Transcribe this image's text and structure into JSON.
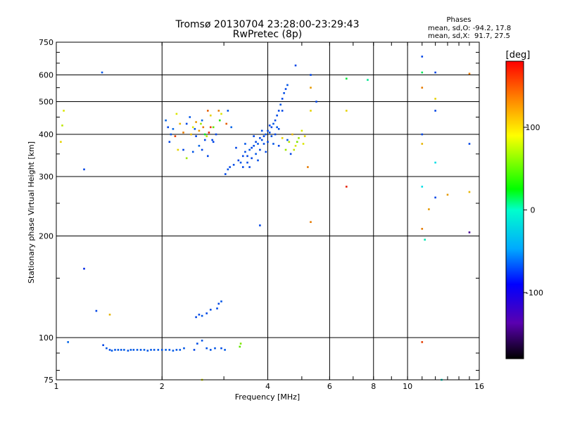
{
  "chart_data": {
    "type": "scatter",
    "title": "Tromsø 20130704 23:28:00-23:29:43",
    "subtitle": "RwPretec (8p)",
    "xlabel": "Frequency [MHz]",
    "ylabel": "Stationary phase Virtual Height [km]",
    "xscale": "log",
    "yscale": "log",
    "xlim": [
      1,
      16
    ],
    "ylim": [
      75,
      750
    ],
    "xticks": [
      1,
      2,
      4,
      6,
      8,
      10,
      16
    ],
    "yticks": [
      75,
      100,
      200,
      300,
      400,
      500,
      600,
      750
    ],
    "grid": true,
    "phases_box": {
      "title": "Phases",
      "line_o": "mean, sd,O: -94.2, 17.8",
      "line_x": "mean, sd,X:  91.7, 27.5"
    },
    "colorbar": {
      "label": "[deg]",
      "range": [
        -180,
        180
      ],
      "ticks": [
        100,
        0,
        -100
      ],
      "colormap": "rainbow"
    },
    "series": [
      {
        "name": "points",
        "points": [
          [
            1.05,
            470,
            100
          ],
          [
            1.04,
            425,
            90
          ],
          [
            1.03,
            380,
            110
          ],
          [
            1.08,
            97,
            -90
          ],
          [
            1.2,
            315,
            -100
          ],
          [
            1.2,
            160,
            -110
          ],
          [
            1.3,
            120,
            -100
          ],
          [
            1.35,
            610,
            -95
          ],
          [
            1.42,
            117,
            120
          ],
          [
            1.36,
            95,
            -100
          ],
          [
            1.39,
            93,
            -95
          ],
          [
            1.42,
            92,
            -98
          ],
          [
            1.44,
            91.5,
            -94
          ],
          [
            1.47,
            92,
            -96
          ],
          [
            1.5,
            92,
            -94
          ],
          [
            1.53,
            92,
            -95
          ],
          [
            1.56,
            92,
            -93
          ],
          [
            1.6,
            91.5,
            -96
          ],
          [
            1.63,
            92,
            -94
          ],
          [
            1.66,
            92,
            -95
          ],
          [
            1.7,
            92,
            -94
          ],
          [
            1.74,
            92,
            -96
          ],
          [
            1.78,
            92,
            -93
          ],
          [
            1.82,
            91.5,
            -95
          ],
          [
            1.86,
            92,
            -94
          ],
          [
            1.9,
            92,
            -96
          ],
          [
            1.95,
            92,
            -94
          ],
          [
            2.0,
            92,
            -95
          ],
          [
            2.05,
            92,
            -93
          ],
          [
            2.1,
            92,
            -95
          ],
          [
            2.15,
            91.5,
            -94
          ],
          [
            2.2,
            92,
            -96
          ],
          [
            2.25,
            92,
            -94
          ],
          [
            2.31,
            93,
            -95
          ],
          [
            2.47,
            92,
            -100
          ],
          [
            2.52,
            96,
            -98
          ],
          [
            2.6,
            98,
            -95
          ],
          [
            2.68,
            93,
            -97
          ],
          [
            2.75,
            92,
            -96
          ],
          [
            2.83,
            93,
            -95
          ],
          [
            2.95,
            93,
            -98
          ],
          [
            3.02,
            92,
            -94
          ],
          [
            2.5,
            115,
            -100
          ],
          [
            2.55,
            117,
            -98
          ],
          [
            2.6,
            116,
            -96
          ],
          [
            2.68,
            118,
            -100
          ],
          [
            2.75,
            121,
            -97
          ],
          [
            2.9,
            126,
            -100
          ],
          [
            2.95,
            128,
            -95
          ],
          [
            2.87,
            122,
            -99
          ],
          [
            3.33,
            94,
            60
          ],
          [
            3.35,
            96,
            70
          ],
          [
            2.6,
            75,
            100
          ],
          [
            2.05,
            440,
            -90
          ],
          [
            2.08,
            420,
            -100
          ],
          [
            2.12,
            400,
            -95
          ],
          [
            2.1,
            380,
            -100
          ],
          [
            2.15,
            415,
            -90
          ],
          [
            2.2,
            460,
            100
          ],
          [
            2.25,
            430,
            120
          ],
          [
            2.3,
            405,
            140
          ],
          [
            2.35,
            430,
            -100
          ],
          [
            2.4,
            450,
            -95
          ],
          [
            2.45,
            420,
            100
          ],
          [
            2.5,
            395,
            -100
          ],
          [
            2.55,
            410,
            130
          ],
          [
            2.6,
            440,
            -90
          ],
          [
            2.65,
            400,
            20
          ],
          [
            2.7,
            470,
            150
          ],
          [
            2.75,
            455,
            110
          ],
          [
            2.8,
            420,
            60
          ],
          [
            2.85,
            400,
            -100
          ],
          [
            2.9,
            470,
            140
          ],
          [
            2.95,
            460,
            100
          ],
          [
            3.05,
            430,
            150
          ],
          [
            3.15,
            420,
            -90
          ],
          [
            2.3,
            360,
            -100
          ],
          [
            2.35,
            340,
            80
          ],
          [
            2.45,
            355,
            -95
          ],
          [
            2.55,
            370,
            -90
          ],
          [
            2.6,
            360,
            -100
          ],
          [
            2.7,
            345,
            -100
          ],
          [
            2.75,
            420,
            160
          ],
          [
            2.5,
            435,
            130
          ],
          [
            2.65,
            385,
            -100
          ],
          [
            2.8,
            380,
            -100
          ],
          [
            2.22,
            360,
            110
          ],
          [
            2.62,
            420,
            140
          ],
          [
            2.72,
            405,
            170
          ],
          [
            3.08,
            470,
            -95
          ],
          [
            2.92,
            440,
            40
          ],
          [
            2.58,
            430,
            80
          ],
          [
            2.42,
            400,
            120
          ],
          [
            2.68,
            395,
            90
          ],
          [
            2.78,
            385,
            -100
          ],
          [
            2.18,
            395,
            160
          ],
          [
            2.48,
            415,
            -95
          ],
          [
            3.03,
            305,
            -100
          ],
          [
            3.08,
            315,
            -95
          ],
          [
            3.12,
            320,
            -100
          ],
          [
            3.2,
            325,
            -98
          ],
          [
            3.3,
            335,
            -100
          ],
          [
            3.35,
            330,
            -95
          ],
          [
            3.4,
            345,
            -100
          ],
          [
            3.45,
            355,
            -98
          ],
          [
            3.5,
            345,
            -100
          ],
          [
            3.55,
            360,
            -95
          ],
          [
            3.6,
            365,
            -100
          ],
          [
            3.65,
            370,
            -98
          ],
          [
            3.7,
            380,
            -100
          ],
          [
            3.75,
            375,
            -95
          ],
          [
            3.8,
            390,
            -100
          ],
          [
            3.85,
            385,
            -98
          ],
          [
            3.9,
            395,
            -100
          ],
          [
            3.95,
            400,
            -95
          ],
          [
            4.0,
            410,
            -100
          ],
          [
            4.05,
            405,
            -98
          ],
          [
            4.1,
            420,
            -100
          ],
          [
            4.15,
            430,
            -95
          ],
          [
            4.2,
            440,
            -100
          ],
          [
            4.25,
            455,
            -98
          ],
          [
            4.3,
            470,
            -100
          ],
          [
            4.35,
            490,
            -95
          ],
          [
            4.4,
            510,
            -100
          ],
          [
            4.45,
            530,
            -98
          ],
          [
            4.5,
            545,
            -100
          ],
          [
            4.55,
            560,
            -95
          ],
          [
            3.4,
            320,
            -100
          ],
          [
            3.5,
            330,
            -98
          ],
          [
            3.6,
            340,
            -100
          ],
          [
            3.7,
            350,
            -95
          ],
          [
            3.8,
            360,
            -100
          ],
          [
            3.9,
            375,
            -98
          ],
          [
            4.0,
            380,
            -100
          ],
          [
            4.1,
            395,
            -95
          ],
          [
            4.2,
            400,
            -100
          ],
          [
            4.3,
            415,
            -98
          ],
          [
            3.25,
            365,
            -100
          ],
          [
            3.45,
            375,
            -95
          ],
          [
            3.65,
            395,
            -100
          ],
          [
            3.85,
            410,
            -98
          ],
          [
            4.05,
            425,
            -100
          ],
          [
            4.25,
            420,
            -95
          ],
          [
            4.4,
            470,
            -100
          ],
          [
            3.55,
            320,
            -100
          ],
          [
            3.75,
            335,
            -98
          ],
          [
            3.95,
            355,
            -100
          ],
          [
            4.15,
            375,
            -95
          ],
          [
            4.3,
            370,
            -100
          ],
          [
            4.4,
            390,
            110
          ],
          [
            4.5,
            360,
            80
          ],
          [
            4.6,
            380,
            90
          ],
          [
            4.7,
            400,
            120
          ],
          [
            4.8,
            370,
            100
          ],
          [
            4.9,
            390,
            80
          ],
          [
            5.0,
            410,
            100
          ],
          [
            5.1,
            395,
            110
          ],
          [
            4.75,
            360,
            90
          ],
          [
            4.85,
            380,
            70
          ],
          [
            5.05,
            375,
            100
          ],
          [
            4.65,
            350,
            -100
          ],
          [
            4.55,
            385,
            -95
          ],
          [
            4.8,
            640,
            -100
          ],
          [
            5.3,
            600,
            -100
          ],
          [
            5.3,
            550,
            130
          ],
          [
            5.5,
            500,
            -100
          ],
          [
            5.3,
            470,
            110
          ],
          [
            5.2,
            320,
            140
          ],
          [
            5.3,
            220,
            140
          ],
          [
            3.8,
            215,
            -100
          ],
          [
            6.7,
            585,
            10
          ],
          [
            6.7,
            470,
            110
          ],
          [
            6.7,
            280,
            170
          ],
          [
            7.7,
            580,
            -20
          ],
          [
            11.0,
            680,
            -100
          ],
          [
            11.0,
            610,
            0
          ],
          [
            11.0,
            550,
            140
          ],
          [
            11.0,
            400,
            -100
          ],
          [
            11.0,
            375,
            120
          ],
          [
            11.0,
            210,
            140
          ],
          [
            11.0,
            97,
            160
          ],
          [
            12.0,
            610,
            -100
          ],
          [
            12.0,
            510,
            110
          ],
          [
            12.0,
            470,
            -100
          ],
          [
            12.0,
            330,
            -50
          ],
          [
            12.0,
            260,
            -100
          ],
          [
            11.0,
            280,
            -50
          ],
          [
            11.5,
            240,
            130
          ],
          [
            13.0,
            265,
            130
          ],
          [
            11.2,
            195,
            -30
          ],
          [
            15.0,
            605,
            140
          ],
          [
            15.0,
            375,
            -100
          ],
          [
            15.0,
            270,
            120
          ],
          [
            15.0,
            205,
            -160
          ],
          [
            12.5,
            75,
            -40
          ]
        ]
      }
    ]
  }
}
